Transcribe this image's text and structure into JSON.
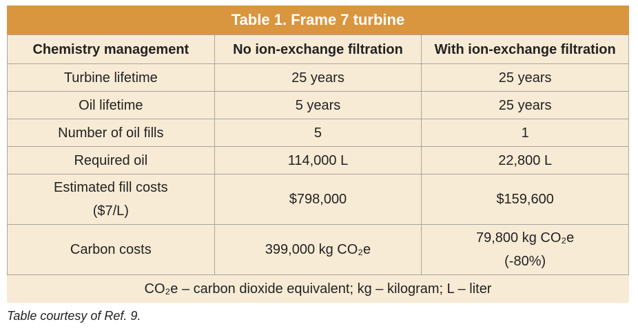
{
  "table": {
    "title": "Table 1. Frame 7 turbine",
    "header": [
      "Chemistry management",
      "No ion-exchange filtration",
      "With ion-exchange filtration"
    ],
    "rows": [
      [
        "Turbine lifetime",
        "25 years",
        "25 years"
      ],
      [
        "Oil lifetime",
        "5 years",
        "25 years"
      ],
      [
        "Number of oil fills",
        "5",
        "1"
      ],
      [
        "Required oil",
        "114,000 L",
        "22,800 L"
      ],
      [
        "Estimated fill costs\n($7/L)",
        "$798,000",
        "$159,600"
      ],
      [
        "Carbon costs",
        "399,000 kg CO₂e",
        "79,800 kg CO₂e\n(-80%)"
      ]
    ],
    "footnote": "CO₂e – carbon dioxide equivalent; kg – kilogram; L – liter"
  },
  "caption": "Table courtesy of Ref. 9."
}
